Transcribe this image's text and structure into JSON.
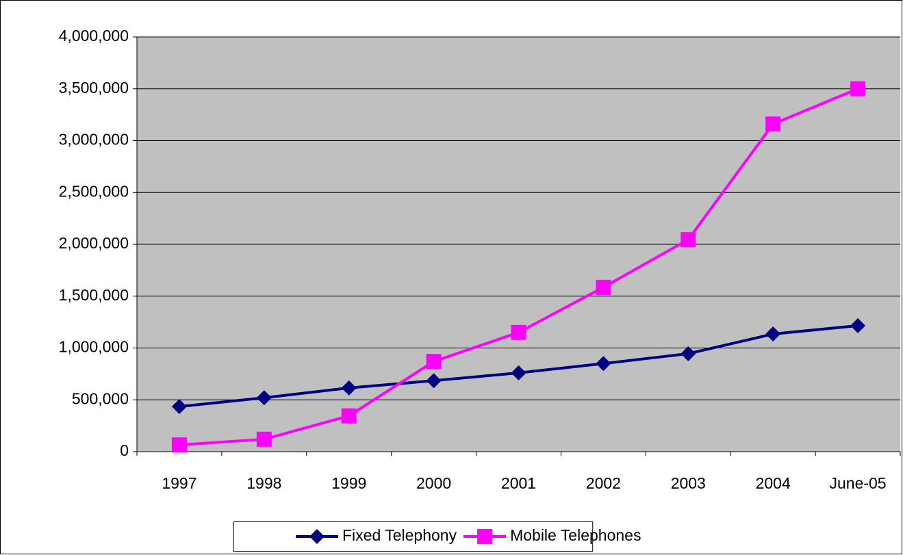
{
  "chart_data": {
    "type": "line",
    "categories": [
      "1997",
      "1998",
      "1999",
      "2000",
      "2001",
      "2002",
      "2003",
      "2004",
      "June-05"
    ],
    "series": [
      {
        "name": "Fixed Telephony",
        "color": "#000080",
        "marker": "diamond",
        "values": [
          435000,
          520000,
          615000,
          685000,
          760000,
          850000,
          945000,
          1135000,
          1215000
        ]
      },
      {
        "name": "Mobile Telephones",
        "color": "#ff00ff",
        "marker": "square",
        "values": [
          65000,
          120000,
          345000,
          870000,
          1150000,
          1585000,
          2045000,
          3160000,
          3500000
        ]
      }
    ],
    "ylim": [
      0,
      4000000
    ],
    "yticks": [
      0,
      {
        "value": 500000,
        "label": "500,000"
      },
      {
        "value": 1000000,
        "label": "1,000,000"
      },
      {
        "value": 1500000,
        "label": "1,500,000"
      },
      {
        "value": 2000000,
        "label": "2,000,000"
      },
      {
        "value": 2500000,
        "label": "2,500,000"
      },
      {
        "value": 3000000,
        "label": "3,000,000"
      },
      {
        "value": 3500000,
        "label": "3,500,000"
      },
      {
        "value": 4000000,
        "label": "4,000,000"
      }
    ],
    "grid": true,
    "legend": "bottom",
    "plot_background": "#c0c0c0"
  }
}
